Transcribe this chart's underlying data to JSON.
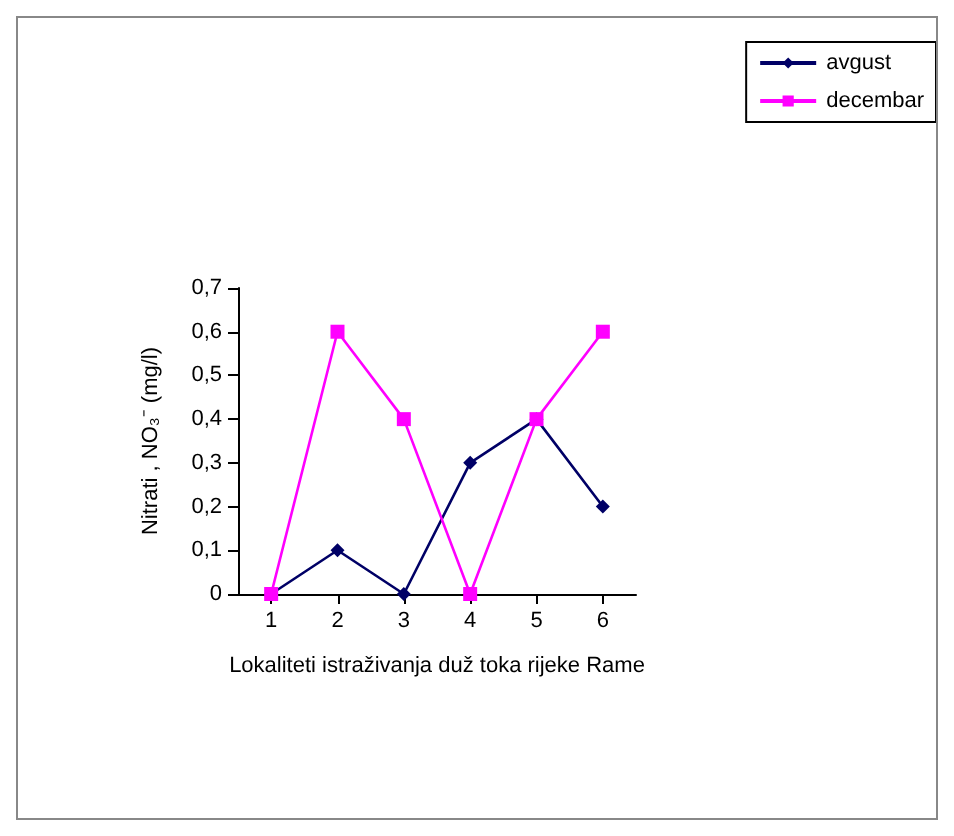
{
  "chart_data": {
    "type": "line",
    "xlabel": "Lokaliteti istraživanja duž toka rijeke Rame",
    "ylabel": "Nitrati , NO₃⁻ (mg/l)",
    "categories": [
      "1",
      "2",
      "3",
      "4",
      "5",
      "6"
    ],
    "series": [
      {
        "name": "avgust",
        "color": "#000066",
        "marker": "diamond",
        "values": [
          0,
          0.1,
          0,
          0.3,
          0.4,
          0.2
        ]
      },
      {
        "name": "decembar",
        "color": "#ff00ff",
        "marker": "square",
        "values": [
          0,
          0.6,
          0.4,
          0,
          0.4,
          0.6
        ]
      }
    ],
    "ylim": [
      0,
      0.7
    ],
    "yticks": [
      0,
      {
        "value": 0.1,
        "label": "0,1"
      },
      {
        "value": 0.2,
        "label": "0,2"
      },
      {
        "value": 0.3,
        "label": "0,3"
      },
      {
        "value": 0.4,
        "label": "0,4"
      },
      {
        "value": 0.5,
        "label": "0,5"
      },
      {
        "value": 0.6,
        "label": "0,6"
      },
      {
        "value": 0.7,
        "label": "0,7"
      }
    ],
    "grid": false,
    "legend": "top right"
  }
}
